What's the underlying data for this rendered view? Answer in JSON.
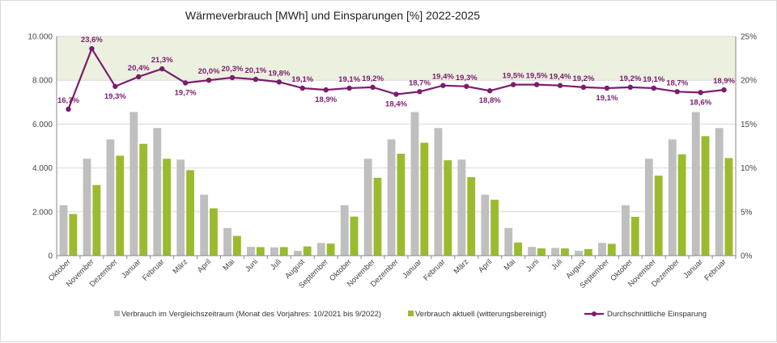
{
  "chart_data": {
    "type": "bar+line",
    "title": "Wärmeverbrauch [MWh] und Einsparungen [%] 2022-2025",
    "categories": [
      "Oktober",
      "November",
      "Dezember",
      "Januar",
      "Februar",
      "März",
      "April",
      "Mai",
      "Juni",
      "Juli",
      "August",
      "September",
      "Oktober",
      "November",
      "Dezember",
      "Januar",
      "Februar",
      "März",
      "April",
      "Mai",
      "Juni",
      "Juli",
      "August",
      "September",
      "Oktober",
      "November",
      "Dezember",
      "Januar",
      "Februar"
    ],
    "y_left": {
      "min": 0,
      "max": 10000,
      "step": 2000,
      "tick_labels": [
        "0",
        "2.000",
        "4.000",
        "6.000",
        "8.000",
        "10.000"
      ]
    },
    "y_right": {
      "min": 0,
      "max": 25,
      "step": 5,
      "tick_labels": [
        "0%",
        "5%",
        "10%",
        "15%",
        "20%",
        "25%"
      ]
    },
    "highlight_band": {
      "from": 8000,
      "to": 10000,
      "color": "#ebf1de"
    },
    "series": [
      {
        "name": "Verbrauch im Vergleichszeitraum (Monat des Vorjahres: 10/2021 bis 9/2022)",
        "type": "bar",
        "axis": "left",
        "color": "#bfbfbf",
        "values": [
          2300,
          4420,
          5300,
          6550,
          5820,
          4380,
          2780,
          1260,
          400,
          380,
          220,
          580,
          2300,
          4420,
          5300,
          6550,
          5820,
          4380,
          2780,
          1260,
          400,
          350,
          220,
          580,
          2300,
          4420,
          5300,
          6550,
          5820
        ]
      },
      {
        "name": "Verbrauch aktuell (witterungsbereinigt)",
        "type": "bar",
        "axis": "left",
        "color": "#9bbb2f",
        "values": [
          1900,
          3220,
          4560,
          5100,
          4420,
          3900,
          2160,
          900,
          390,
          390,
          420,
          550,
          1780,
          3550,
          4650,
          5150,
          4350,
          3580,
          2550,
          600,
          330,
          330,
          300,
          540,
          1770,
          3650,
          4620,
          5450,
          4450
        ]
      },
      {
        "name": "Durchschnittliche Einsparung",
        "type": "line",
        "axis": "right",
        "color": "#7b1c6e",
        "values": [
          16.7,
          23.6,
          19.3,
          20.4,
          21.3,
          19.7,
          20.0,
          20.3,
          20.1,
          19.8,
          19.1,
          18.9,
          19.1,
          19.2,
          18.4,
          18.7,
          19.4,
          19.3,
          18.8,
          19.5,
          19.5,
          19.4,
          19.2,
          19.1,
          19.2,
          19.1,
          18.7,
          18.6,
          18.9
        ],
        "labels": [
          "16,7%",
          "23,6%",
          "19,3%",
          "20,4%",
          "21,3%",
          "19,7%",
          "20,0%",
          "20,3%",
          "20,1%",
          "19,8%",
          "19,1%",
          "18,9%",
          "19,1%",
          "19,2%",
          "18,4%",
          "18,7%",
          "19,4%",
          "19,3%",
          "18,8%",
          "19,5%",
          "19,5%",
          "19,4%",
          "19,2%",
          "19,1%",
          "19,2%",
          "19,1%",
          "18,7%",
          "18,6%",
          "18,9%"
        ]
      }
    ],
    "legend_position": "bottom"
  }
}
